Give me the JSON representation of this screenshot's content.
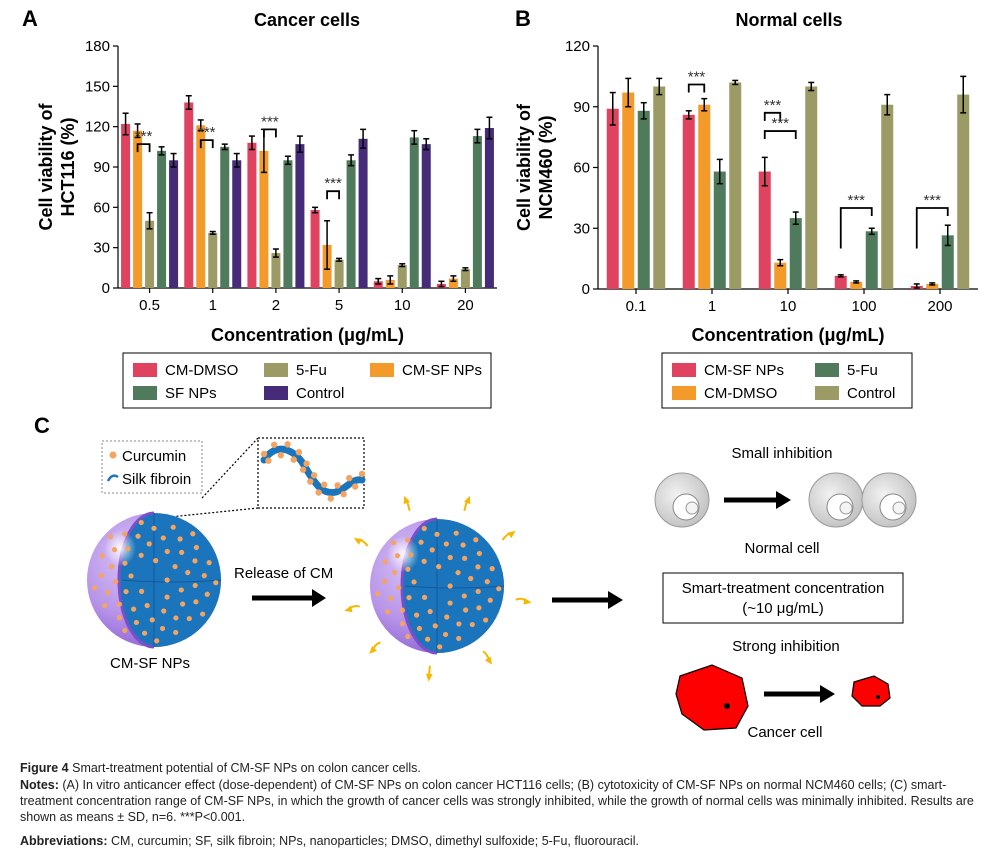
{
  "panels": {
    "a": {
      "letter": "A",
      "title": "Cancer cells"
    },
    "b": {
      "letter": "B",
      "title": "Normal cells"
    },
    "c": {
      "letter": "C"
    }
  },
  "chart_data": [
    {
      "type": "bar",
      "panel": "A",
      "title": "Cancer cells",
      "xlabel": "Concentration (μg/mL)",
      "ylabel_line1": "Cell viability of",
      "ylabel_line2": "HCT116 (%)",
      "ylim": [
        0,
        180
      ],
      "yticks": [
        0,
        30,
        60,
        90,
        120,
        150,
        180
      ],
      "categories": [
        "0.5",
        "1",
        "2",
        "5",
        "10",
        "20"
      ],
      "series": [
        {
          "name": "CM-DMSO",
          "color": "#e0435f",
          "values": [
            122,
            138,
            108,
            58,
            5,
            3
          ],
          "errors": [
            8,
            5,
            5,
            2,
            2,
            2
          ]
        },
        {
          "name": "CM-SF NPs",
          "color": "#f39a2b",
          "values": [
            117,
            121,
            102,
            32,
            6,
            7
          ],
          "errors": [
            5,
            4,
            16,
            18,
            3,
            2
          ]
        },
        {
          "name": "5-Fu",
          "color": "#9c9a65",
          "values": [
            50,
            41,
            26,
            21,
            17,
            14
          ],
          "errors": [
            6,
            1,
            3,
            1,
            1,
            1
          ]
        },
        {
          "name": "SF NPs",
          "color": "#4f7a5c",
          "values": [
            102,
            105,
            95,
            95,
            112,
            113
          ],
          "errors": [
            3,
            2,
            3,
            4,
            5,
            5
          ]
        },
        {
          "name": "Control",
          "color": "#452b78",
          "values": [
            95,
            95,
            107,
            111,
            107,
            119
          ],
          "errors": [
            5,
            5,
            6,
            7,
            4,
            8
          ]
        }
      ],
      "significance": [
        {
          "category": "0.5",
          "label": "***"
        },
        {
          "category": "1",
          "label": "***"
        },
        {
          "category": "2",
          "label": "***"
        },
        {
          "category": "5",
          "label": "***"
        }
      ],
      "legend": [
        "CM-DMSO",
        "5-Fu",
        "CM-SF NPs",
        "SF NPs",
        "Control"
      ]
    },
    {
      "type": "bar",
      "panel": "B",
      "title": "Normal cells",
      "xlabel": "Concentration (μg/mL)",
      "ylabel_line1": "Cell viability of",
      "ylabel_line2": "NCM460 (%)",
      "ylim": [
        0,
        120
      ],
      "yticks": [
        0,
        30,
        60,
        90,
        120
      ],
      "categories": [
        "0.1",
        "1",
        "10",
        "100",
        "200"
      ],
      "series": [
        {
          "name": "CM-SF NPs",
          "color": "#e0435f",
          "values": [
            89,
            86,
            58,
            6.5,
            1.5
          ],
          "errors": [
            8,
            2,
            7,
            0.5,
            1
          ]
        },
        {
          "name": "CM-DMSO",
          "color": "#f39a2b",
          "values": [
            97,
            91,
            13,
            3.5,
            2.5
          ],
          "errors": [
            7,
            3,
            1.5,
            0.5,
            0.5
          ]
        },
        {
          "name": "5-Fu",
          "color": "#4f7a5c",
          "values": [
            88,
            58,
            35,
            28.5,
            26.5
          ],
          "errors": [
            4,
            6,
            3,
            1.5,
            5
          ]
        },
        {
          "name": "Control",
          "color": "#9c9a65",
          "values": [
            100,
            102,
            100,
            91,
            96
          ],
          "errors": [
            4,
            1,
            2,
            5,
            9
          ]
        }
      ],
      "significance": [
        {
          "category": "1",
          "label": "***"
        },
        {
          "category": "10",
          "label": "***"
        },
        {
          "category": "10",
          "label": "***"
        },
        {
          "category": "100",
          "label": "***"
        },
        {
          "category": "200",
          "label": "***"
        }
      ],
      "legend": [
        "CM-SF NPs",
        "5-Fu",
        "CM-DMSO",
        "Control"
      ]
    }
  ],
  "diagram": {
    "legend_curcumin": "Curcumin",
    "legend_silk": "Silk fibroin",
    "nanoparticle_label": "CM-SF NPs",
    "release_label": "Release of CM",
    "small_inhibition": "Small inhibition",
    "normal_cell": "Normal cell",
    "box_line1": "Smart-treatment concentration",
    "box_line2": "(~10 μg/mL)",
    "strong_inhibition": "Strong inhibition",
    "cancer_cell": "Cancer cell",
    "colors": {
      "sphere_outer": "#b794e8",
      "sphere_core": "#1b75bc",
      "dot": "#f4a460",
      "release_arrow": "#f5b800",
      "cancer": "#ff0000",
      "normal": "#d9d9d9"
    }
  },
  "caption": {
    "figure_label": "Figure 4",
    "figure_text": "Smart-treatment potential of CM-SF NPs on colon cancer cells.",
    "notes_label": "Notes:",
    "notes_text": "(A) In vitro anticancer effect (dose-dependent) of CM-SF NPs on colon cancer HCT116 cells; (B) cytotoxicity of CM-SF NPs on normal NCM460 cells; (C) smart-treatment concentration range of CM-SF NPs, in which the growth of cancer cells was strongly inhibited, while the growth of normal cells was minimally inhibited. Results are shown as means ± SD, n=6. ***P<0.001.",
    "abbr_label": "Abbreviations:",
    "abbr_text": "CM, curcumin; SF, silk fibroin; NPs, nanoparticles; DMSO, dimethyl sulfoxide; 5-Fu, fluorouracil."
  }
}
